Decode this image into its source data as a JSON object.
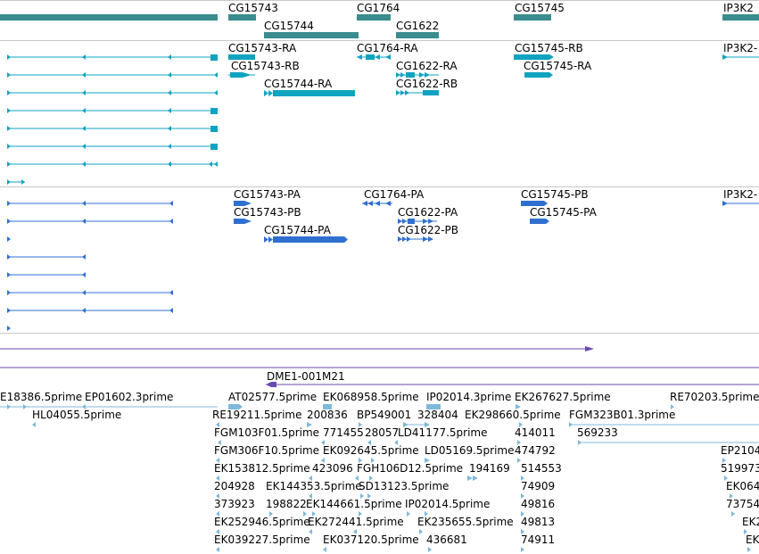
{
  "colors": {
    "gene": "#3a8c8f",
    "transcript": "#0fa3c0",
    "protein": "#2f6fd0",
    "contig": "#6a4aae",
    "est": "#7fb8db"
  },
  "genes": [
    {
      "label": "CG15743"
    },
    {
      "label": "CG15744"
    },
    {
      "label": "CG1764"
    },
    {
      "label": "CG1622"
    },
    {
      "label": "CG15745"
    },
    {
      "label": "IP3K2"
    }
  ],
  "transcripts": [
    {
      "label": "CG15743-RA"
    },
    {
      "label": "CG15743-RB"
    },
    {
      "label": "CG15744-RA"
    },
    {
      "label": "CG1764-RA"
    },
    {
      "label": "CG1622-RA"
    },
    {
      "label": "CG1622-RB"
    },
    {
      "label": "CG15745-RB"
    },
    {
      "label": "CG15745-RA"
    },
    {
      "label": "IP3K2-"
    }
  ],
  "proteins": [
    {
      "label": "CG15743-PA"
    },
    {
      "label": "CG15743-PB"
    },
    {
      "label": "CG15744-PA"
    },
    {
      "label": "CG1764-PA"
    },
    {
      "label": "CG1622-PA"
    },
    {
      "label": "CG1622-PB"
    },
    {
      "label": "CG15745-PB"
    },
    {
      "label": "CG15745-PA"
    },
    {
      "label": "IP3K2-"
    }
  ],
  "contig": {
    "label": "DME1-001M21"
  },
  "ests": [
    {
      "label": "E18386.5prime"
    },
    {
      "label": "EP01602.3prime"
    },
    {
      "label": "HL04055.5prime"
    },
    {
      "label": "AT02577.5prime"
    },
    {
      "label": "EK068958.5prime"
    },
    {
      "label": "IP02014.3prime"
    },
    {
      "label": "EK267627.5prime"
    },
    {
      "label": "RE70203.5prime"
    },
    {
      "label": "RE19211.5prime"
    },
    {
      "label": "200836"
    },
    {
      "label": "BP549001"
    },
    {
      "label": "328404"
    },
    {
      "label": "EK298660.5prime"
    },
    {
      "label": "FGM323B01.3prime"
    },
    {
      "label": "FGM103F01.5prime"
    },
    {
      "label": "771455"
    },
    {
      "label": "28057"
    },
    {
      "label": "LD41177.5prime"
    },
    {
      "label": "414011"
    },
    {
      "label": "569233"
    },
    {
      "label": "FGM306F10.5prime"
    },
    {
      "label": "EK092645.5prime"
    },
    {
      "label": "LD05169.5prime"
    },
    {
      "label": "474792"
    },
    {
      "label": "EP2104"
    },
    {
      "label": "EK153812.5prime"
    },
    {
      "label": "423096"
    },
    {
      "label": "FGH106D12.5prime"
    },
    {
      "label": "194169"
    },
    {
      "label": "514553"
    },
    {
      "label": "519973"
    },
    {
      "label": "204928"
    },
    {
      "label": "EK144353.5prime"
    },
    {
      "label": "SD13123.5prime"
    },
    {
      "label": "74909"
    },
    {
      "label": "EK064"
    },
    {
      "label": "373923"
    },
    {
      "label": "198822"
    },
    {
      "label": "EK144661.5prime"
    },
    {
      "label": "IP02014.5prime"
    },
    {
      "label": "49816"
    },
    {
      "label": "73754"
    },
    {
      "label": "EK252946.5prime"
    },
    {
      "label": "EK272441.5prime"
    },
    {
      "label": "EK235655.5prime"
    },
    {
      "label": "49813"
    },
    {
      "label": "EK2"
    },
    {
      "label": "EK039227.5prime"
    },
    {
      "label": "EK037120.5prime"
    },
    {
      "label": "436681"
    },
    {
      "label": "74911"
    },
    {
      "label": "EK"
    }
  ]
}
